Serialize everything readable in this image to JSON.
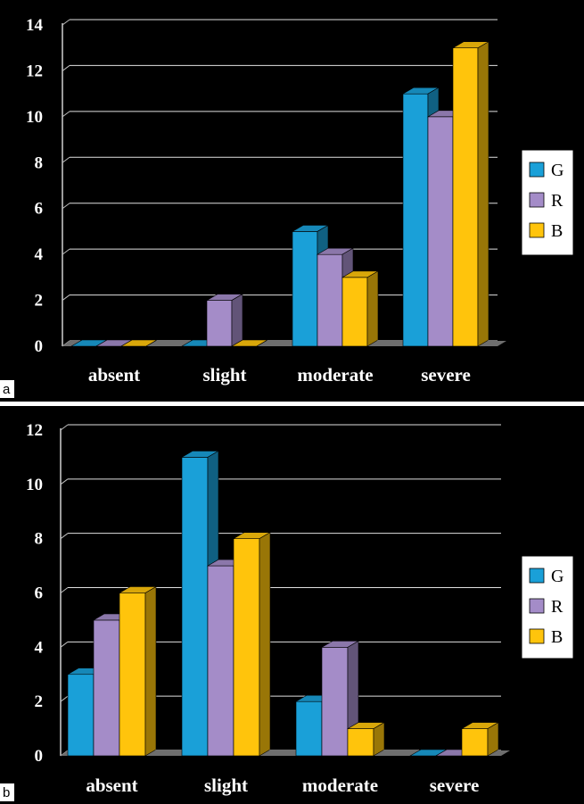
{
  "chart_data": [
    {
      "panel_label": "a",
      "type": "bar",
      "categories": [
        "absent",
        "slight",
        "moderate",
        "severe"
      ],
      "ylim": [
        0,
        14
      ],
      "yticks": [
        "0",
        "2",
        "4",
        "6",
        "8",
        "10",
        "12",
        "14"
      ],
      "grid": true,
      "legend_position": "right",
      "series": [
        {
          "name": "G",
          "color": "#1aa0d8",
          "values": [
            0,
            0,
            5,
            11
          ]
        },
        {
          "name": "R",
          "color": "#a48cc8",
          "values": [
            0,
            2,
            4,
            10
          ]
        },
        {
          "name": "B",
          "color": "#ffc40c",
          "values": [
            0,
            0,
            3,
            13
          ]
        }
      ]
    },
    {
      "panel_label": "b",
      "type": "bar",
      "categories": [
        "absent",
        "slight",
        "moderate",
        "severe"
      ],
      "ylim": [
        0,
        12
      ],
      "yticks": [
        "0",
        "2",
        "4",
        "6",
        "8",
        "10",
        "12"
      ],
      "grid": true,
      "legend_position": "right",
      "series": [
        {
          "name": "G",
          "color": "#1aa0d8",
          "values": [
            3,
            11,
            2,
            0
          ]
        },
        {
          "name": "R",
          "color": "#a48cc8",
          "values": [
            5,
            7,
            4,
            0
          ]
        },
        {
          "name": "B",
          "color": "#ffc40c",
          "values": [
            6,
            8,
            1,
            1
          ]
        }
      ]
    }
  ]
}
